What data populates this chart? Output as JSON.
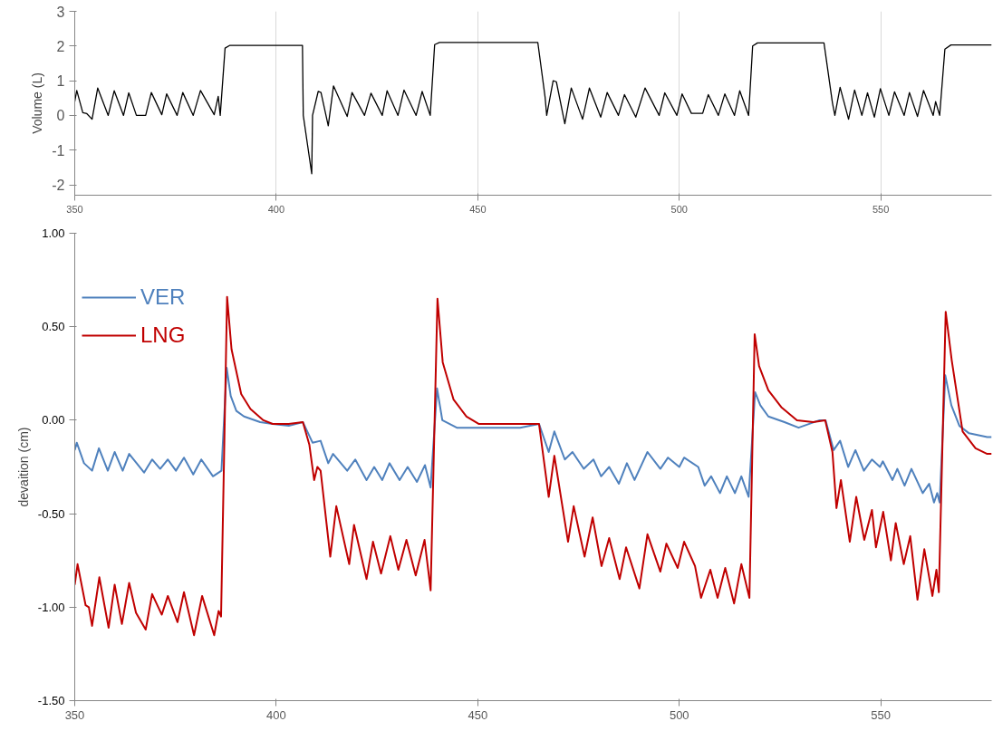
{
  "chart_data": [
    {
      "type": "line",
      "ylabel": "Volume (L)",
      "xlim": [
        350,
        577.5
      ],
      "ylim": [
        -2.3,
        3
      ],
      "xticks": [
        350,
        400,
        450,
        500,
        550
      ],
      "yticks": [
        -2,
        -1,
        0,
        1,
        2,
        3
      ],
      "grid": "x",
      "legend": false,
      "series": [
        {
          "color": "#000000",
          "x": [
            350,
            350.5,
            352,
            353,
            354.3,
            355.7,
            358.3,
            359.8,
            362.1,
            363.4,
            365.3,
            367.6,
            369,
            371.6,
            372.8,
            375.4,
            376.8,
            379.4,
            381.2,
            384.6,
            385.6,
            386.1,
            387.3,
            388.5,
            406.5,
            406.7,
            408.8,
            409,
            410.4,
            411.1,
            412.9,
            414.2,
            417.6,
            418.8,
            421.9,
            423.5,
            426.3,
            427.5,
            430.2,
            431.7,
            434.7,
            436.2,
            438.2,
            439.3,
            440.5,
            464.9,
            466.7,
            467.1,
            468.7,
            469.5,
            471.6,
            473.2,
            476,
            477.7,
            480.5,
            482.1,
            484.9,
            486.4,
            489.2,
            491.5,
            495,
            496.4,
            499.4,
            500.7,
            503,
            505.8,
            507.2,
            509.7,
            511.3,
            513.7,
            515,
            517.2,
            518.2,
            519.4,
            535.9,
            538,
            538.6,
            539.9,
            542,
            543.5,
            545.3,
            546.7,
            548.4,
            549.9,
            552,
            553.4,
            555.8,
            557.1,
            559.1,
            560.6,
            563,
            563.6,
            564.6,
            565.9,
            567.4,
            577.5
          ],
          "values": [
            0.4,
            0.72,
            0.08,
            0.05,
            -0.11,
            0.79,
            0,
            0.71,
            0,
            0.65,
            0,
            0,
            0.66,
            0.02,
            0.62,
            0,
            0.66,
            0,
            0.72,
            0.02,
            0.55,
            0,
            1.94,
            2.02,
            2.02,
            0,
            -1.68,
            0,
            0.69,
            0.66,
            -0.3,
            0.85,
            -0.03,
            0.66,
            0,
            0.64,
            0,
            0.71,
            0,
            0.73,
            0,
            0.69,
            0,
            2.04,
            2.1,
            2.1,
            0.53,
            0,
            1.0,
            0.97,
            -0.24,
            0.79,
            -0.11,
            0.79,
            -0.05,
            0.66,
            0,
            0.6,
            -0.05,
            0.79,
            0,
            0.65,
            0,
            0.62,
            0.06,
            0.06,
            0.6,
            0,
            0.62,
            0,
            0.71,
            0,
            2.0,
            2.09,
            2.09,
            0.36,
            0,
            0.81,
            -0.11,
            0.73,
            0,
            0.65,
            -0.05,
            0.77,
            0,
            0.68,
            0,
            0.66,
            -0.03,
            0.72,
            0,
            0.4,
            0,
            1.91,
            2.03,
            2.03
          ]
        }
      ]
    },
    {
      "type": "line",
      "ylabel": "devaition (cm)",
      "xlim": [
        350,
        577.5
      ],
      "ylim": [
        -1.5,
        1
      ],
      "xticks": [
        350,
        400,
        450,
        500,
        550
      ],
      "yticks": [
        {
          "value": -1.5,
          "label": "-1.50"
        },
        {
          "value": -1,
          "label": "-1.00"
        },
        {
          "value": -0.5,
          "label": "-0.50"
        },
        {
          "value": 0,
          "label": "0.00"
        },
        {
          "value": 0.5,
          "label": "0.50"
        },
        {
          "value": 1,
          "label": "1.00"
        }
      ],
      "legend": "top left",
      "series": [
        {
          "name": "VER",
          "color": "#4f81bd",
          "x": [
            350,
            350.5,
            352.3,
            354.3,
            356,
            358.2,
            359.9,
            361.9,
            363.5,
            367.2,
            369.2,
            371.2,
            373.1,
            375.1,
            377.1,
            379.4,
            381.4,
            384.3,
            386.4,
            387.7,
            388.7,
            390.1,
            392,
            396,
            399.1,
            403.1,
            406.6,
            409,
            411,
            412.9,
            414.1,
            417.6,
            419.6,
            422.4,
            424.3,
            426.3,
            428.1,
            430.6,
            432.6,
            434.9,
            436.9,
            438.3,
            439.9,
            441.2,
            444.8,
            450,
            452.6,
            460.5,
            465.2,
            467.6,
            469,
            471.6,
            473.5,
            476.3,
            478.7,
            480.6,
            482.6,
            485,
            487,
            488.9,
            492.1,
            495.3,
            497.2,
            500,
            501.2,
            504.7,
            506.3,
            507.9,
            510.1,
            511.8,
            513.8,
            515.4,
            517.2,
            518.8,
            520.1,
            522.1,
            526.1,
            529.6,
            534.8,
            536.3,
            538.3,
            539.9,
            541.9,
            543.7,
            545.8,
            547.8,
            549.8,
            550.5,
            552.9,
            554.1,
            555.9,
            557.6,
            560.4,
            562,
            563.2,
            564,
            564.6,
            566,
            567.5,
            569.5,
            571.9,
            576.4,
            577.5
          ],
          "values": [
            -0.16,
            -0.12,
            -0.23,
            -0.27,
            -0.15,
            -0.27,
            -0.17,
            -0.27,
            -0.18,
            -0.28,
            -0.21,
            -0.26,
            -0.21,
            -0.27,
            -0.2,
            -0.29,
            -0.21,
            -0.3,
            -0.27,
            0.28,
            0.13,
            0.05,
            0.02,
            -0.01,
            -0.02,
            -0.03,
            -0.01,
            -0.12,
            -0.11,
            -0.23,
            -0.18,
            -0.27,
            -0.21,
            -0.32,
            -0.25,
            -0.32,
            -0.23,
            -0.32,
            -0.25,
            -0.33,
            -0.24,
            -0.36,
            0.17,
            0,
            -0.04,
            -0.04,
            -0.04,
            -0.04,
            -0.02,
            -0.17,
            -0.06,
            -0.21,
            -0.17,
            -0.26,
            -0.21,
            -0.3,
            -0.25,
            -0.34,
            -0.23,
            -0.32,
            -0.17,
            -0.26,
            -0.2,
            -0.25,
            -0.2,
            -0.25,
            -0.35,
            -0.3,
            -0.39,
            -0.3,
            -0.39,
            -0.3,
            -0.41,
            0.15,
            0.08,
            0.02,
            -0.01,
            -0.04,
            0,
            0,
            -0.16,
            -0.11,
            -0.25,
            -0.16,
            -0.27,
            -0.21,
            -0.25,
            -0.22,
            -0.32,
            -0.26,
            -0.35,
            -0.26,
            -0.39,
            -0.34,
            -0.44,
            -0.39,
            -0.44,
            0.24,
            0.08,
            -0.03,
            -0.07,
            -0.09,
            -0.09
          ]
        },
        {
          "name": "LNG",
          "color": "#c00000",
          "x": [
            350,
            350.7,
            352.7,
            353.5,
            354.3,
            356.1,
            358.4,
            359.9,
            361.7,
            363.5,
            365.2,
            367.6,
            369.2,
            371.6,
            373.1,
            375.5,
            377.1,
            379.6,
            381.6,
            384.6,
            385.7,
            386.3,
            387.8,
            388.9,
            391.3,
            393.6,
            396.8,
            399.1,
            403.1,
            406.6,
            408.2,
            409.4,
            410.2,
            411,
            413.4,
            414.9,
            418.1,
            419.3,
            422.4,
            424,
            426,
            428.3,
            430.3,
            432.3,
            434.6,
            436.8,
            438.3,
            440,
            441.3,
            444,
            447.2,
            450.3,
            452.6,
            465.2,
            467.6,
            469,
            472.4,
            473.8,
            476.5,
            478.5,
            480.7,
            482.6,
            485.2,
            486.8,
            490.1,
            492.1,
            495.3,
            496.8,
            499.6,
            501.2,
            503.9,
            505.4,
            507.7,
            509.5,
            511.4,
            513.6,
            515.4,
            517.4,
            518.7,
            519.8,
            522.1,
            525.3,
            529.2,
            533.2,
            536.2,
            538,
            539,
            540.1,
            542.3,
            543.9,
            545.9,
            547.8,
            548.8,
            550.6,
            552.5,
            553.7,
            555.7,
            557.3,
            559.1,
            560.8,
            562.8,
            563.8,
            564.4,
            566.1,
            567.6,
            570.3,
            573.5,
            576.4,
            577.5
          ],
          "values": [
            -0.88,
            -0.77,
            -0.99,
            -1.0,
            -1.1,
            -0.84,
            -1.11,
            -0.88,
            -1.09,
            -0.87,
            -1.03,
            -1.12,
            -0.93,
            -1.04,
            -0.94,
            -1.08,
            -0.92,
            -1.15,
            -0.94,
            -1.15,
            -1.02,
            -1.05,
            0.66,
            0.38,
            0.14,
            0.06,
            0,
            -0.02,
            -0.02,
            -0.01,
            -0.13,
            -0.32,
            -0.25,
            -0.27,
            -0.73,
            -0.46,
            -0.77,
            -0.56,
            -0.85,
            -0.65,
            -0.82,
            -0.62,
            -0.8,
            -0.64,
            -0.83,
            -0.64,
            -0.91,
            0.65,
            0.31,
            0.11,
            0.02,
            -0.02,
            -0.02,
            -0.02,
            -0.41,
            -0.19,
            -0.65,
            -0.46,
            -0.73,
            -0.52,
            -0.78,
            -0.63,
            -0.85,
            -0.68,
            -0.9,
            -0.61,
            -0.81,
            -0.66,
            -0.79,
            -0.65,
            -0.78,
            -0.95,
            -0.8,
            -0.95,
            -0.79,
            -0.98,
            -0.77,
            -0.95,
            0.46,
            0.29,
            0.16,
            0.07,
            0,
            -0.01,
            0,
            -0.17,
            -0.47,
            -0.32,
            -0.65,
            -0.41,
            -0.64,
            -0.48,
            -0.68,
            -0.49,
            -0.75,
            -0.55,
            -0.77,
            -0.62,
            -0.96,
            -0.69,
            -0.94,
            -0.8,
            -0.92,
            0.58,
            0.32,
            -0.06,
            -0.15,
            -0.18,
            -0.18
          ]
        }
      ]
    }
  ]
}
